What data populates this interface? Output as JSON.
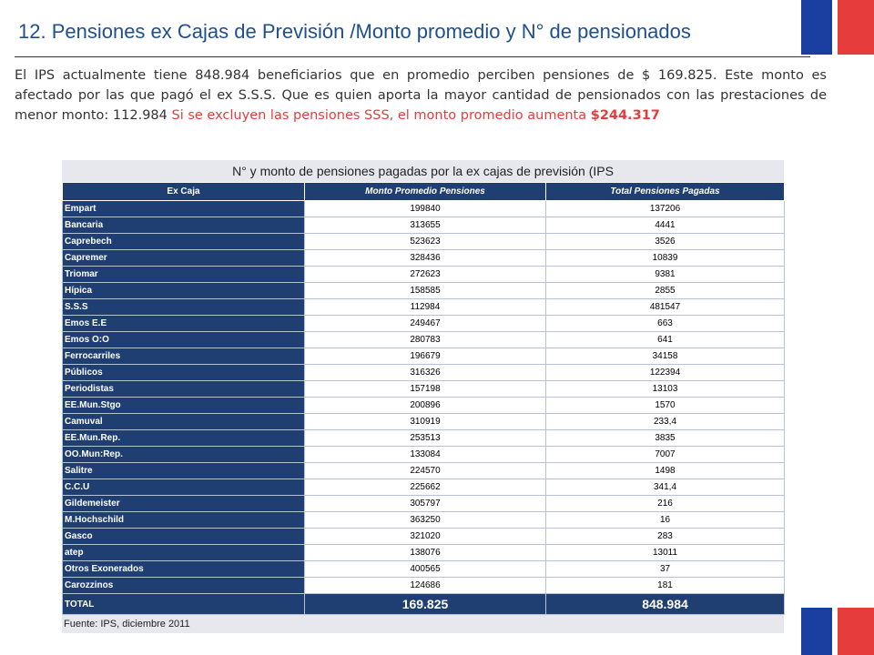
{
  "title": "12. Pensiones ex Cajas de Previsión /Monto promedio y N° de pensionados",
  "paragraph": {
    "part1": "El IPS actualmente tiene 848.984 beneficiarios que en promedio perciben pensiones de $ 169.825. Este monto es afectado por las que pagó el ex  S.S.S.  Que es quien aporta la mayor cantidad de pensionados con las prestaciones de menor monto: 112.984 ",
    "part2": "Si se excluyen las pensiones SSS, el monto promedio aumenta ",
    "part3": "$244.317"
  },
  "table": {
    "caption": "N° y monto de pensiones pagadas por la ex cajas de previsión (IPS",
    "headers": [
      "Ex Caja",
      "Monto Promedio Pensiones",
      "Total Pensiones Pagadas"
    ],
    "rows": [
      [
        "Empart",
        "199840",
        "137206"
      ],
      [
        "Bancaria",
        "313655",
        "4441"
      ],
      [
        "Caprebech",
        "523623",
        "3526"
      ],
      [
        "Capremer",
        "328436",
        "10839"
      ],
      [
        "Triomar",
        "272623",
        "9381"
      ],
      [
        "Hípica",
        "158585",
        "2855"
      ],
      [
        "S.S.S",
        "112984",
        "481547"
      ],
      [
        "Emos E.E",
        "249467",
        "663"
      ],
      [
        "Emos O:O",
        "280783",
        "641"
      ],
      [
        "Ferrocarriles",
        "196679",
        "34158"
      ],
      [
        " Públicos",
        "316326",
        "122394"
      ],
      [
        "Periodistas",
        "157198",
        "13103"
      ],
      [
        "EE.Mun.Stgo",
        "200896",
        "1570"
      ],
      [
        "Camuval",
        "310919",
        "233,4"
      ],
      [
        "EE.Mun.Rep.",
        "253513",
        "3835"
      ],
      [
        "OO.Mun:Rep.",
        "133084",
        "7007"
      ],
      [
        "Salitre",
        "224570",
        "1498"
      ],
      [
        "C.C.U",
        "225662",
        "341,4"
      ],
      [
        "Gildemeister",
        "305797",
        "216"
      ],
      [
        "M.Hochschild",
        "363250",
        "16"
      ],
      [
        "Gasco",
        "321020",
        "283"
      ],
      [
        "atep",
        "138076",
        "13011"
      ],
      [
        "Otros Exonerados",
        "400565",
        "37"
      ],
      [
        "Carozzinos",
        "124686",
        "181"
      ]
    ],
    "total": [
      "TOTAL",
      "169.825",
      "848.984"
    ],
    "source": "Fuente: IPS, diciembre 2011"
  },
  "colors": {
    "title": "#1f4f8f",
    "header_bg": "#1f3f73",
    "accent_red": "#e63c3c",
    "flag_blue": "#1a3fa0"
  }
}
